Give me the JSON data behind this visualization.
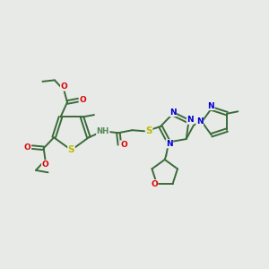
{
  "bg_color": "#e8eae8",
  "bond_color": "#3a6b3a",
  "bond_width": 1.4,
  "atom_colors": {
    "O": "#dd0000",
    "N": "#0000cc",
    "S": "#bbbb00",
    "H": "#558855"
  },
  "font_size": 6.5,
  "figsize": [
    3.0,
    3.0
  ],
  "dpi": 100,
  "xlim": [
    0,
    10
  ],
  "ylim": [
    0,
    10
  ]
}
